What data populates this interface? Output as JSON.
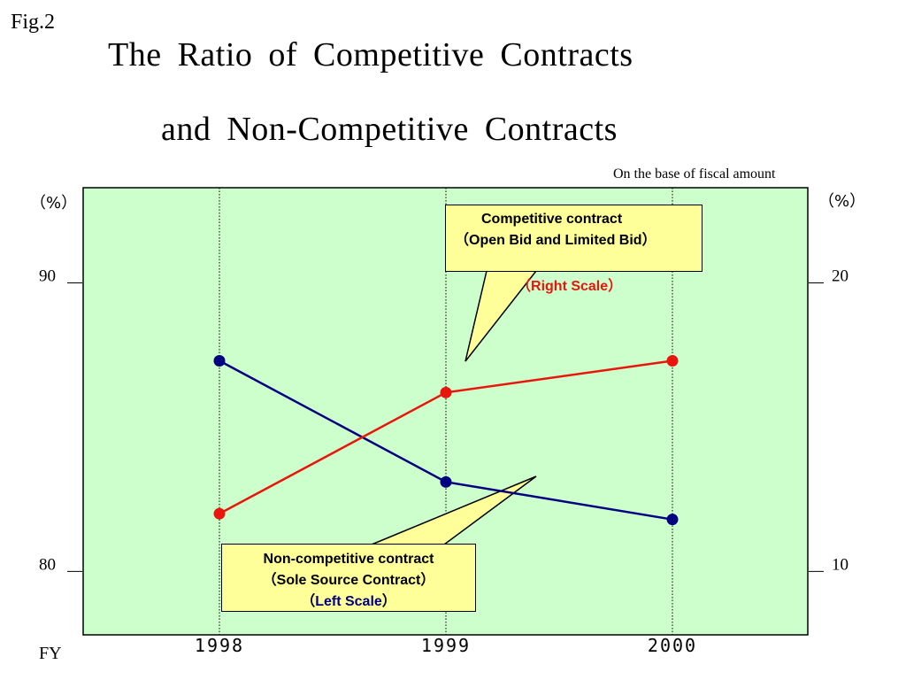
{
  "fig_label": "Fig.2",
  "title_line1": "The Ratio of Competitive Contracts",
  "title_line2": "and Non-Competitive Contracts",
  "basis_note": "On the base of fiscal amount",
  "left_unit": "（%）",
  "right_unit": "（%）",
  "x_axis_label": "FY",
  "colors": {
    "plot_background": "#ccffcc",
    "competitive": "#e8160c",
    "non_competitive": "#000080",
    "callout_fill": "#ffff99"
  },
  "callouts": {
    "competitive": {
      "line1": "Competitive contract",
      "line2_open": "（",
      "line2_text": "Open Bid and Limited Bid",
      "line2_close": "）",
      "scale_open": "（",
      "scale_text": "Right Scale",
      "scale_close": "）"
    },
    "non_competitive": {
      "line1": "Non-competitive contract",
      "line2": "（Sole Source Contract）",
      "scale_open": "（",
      "scale_text": "Left Scale",
      "scale_close": "）"
    }
  },
  "chart_data": {
    "type": "line",
    "title": "The Ratio of Competitive Contracts and Non-Competitive Contracts",
    "xlabel": "FY",
    "categories": [
      "1998",
      "1999",
      "2000"
    ],
    "left_axis": {
      "ticks": [
        80,
        90
      ],
      "range": [
        77.8,
        93.3
      ]
    },
    "right_axis": {
      "ticks": [
        10,
        20
      ],
      "range": [
        7.8,
        23.3
      ]
    },
    "series": [
      {
        "name": "Non-competitive contract（Sole Source Contract）",
        "axis": "left",
        "color": "#000080",
        "values": [
          87.3,
          83.1,
          81.8
        ]
      },
      {
        "name": "Competitive contract（Open Bid and Limited Bid）",
        "axis": "right",
        "color": "#e8160c",
        "values": [
          12.0,
          16.2,
          17.3
        ]
      }
    ],
    "grid": "vertical dotted lines at each category",
    "legend": "callout boxes"
  }
}
